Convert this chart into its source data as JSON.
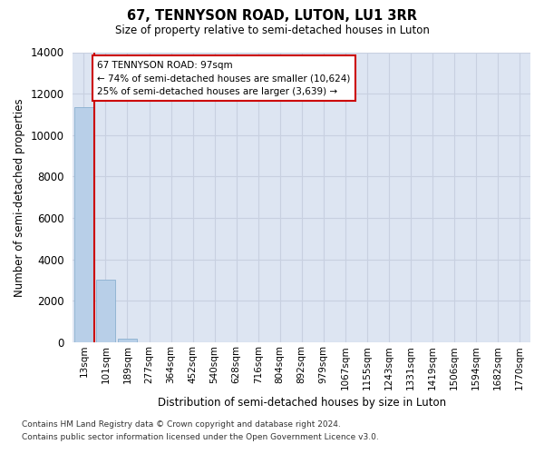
{
  "title": "67, TENNYSON ROAD, LUTON, LU1 3RR",
  "subtitle": "Size of property relative to semi-detached houses in Luton",
  "xlabel": "Distribution of semi-detached houses by size in Luton",
  "ylabel": "Number of semi-detached properties",
  "categories": [
    "13sqm",
    "101sqm",
    "189sqm",
    "277sqm",
    "364sqm",
    "452sqm",
    "540sqm",
    "628sqm",
    "716sqm",
    "804sqm",
    "892sqm",
    "979sqm",
    "1067sqm",
    "1155sqm",
    "1243sqm",
    "1331sqm",
    "1419sqm",
    "1506sqm",
    "1594sqm",
    "1682sqm",
    "1770sqm"
  ],
  "bar_values": [
    11350,
    3050,
    200,
    0,
    0,
    0,
    0,
    0,
    0,
    0,
    0,
    0,
    0,
    0,
    0,
    0,
    0,
    0,
    0,
    0,
    0
  ],
  "bar_color": "#b8cfe8",
  "bar_edge_color": "#8ab0d0",
  "vline_color": "#cc0000",
  "vline_x": 0.5,
  "annotation_line1": "67 TENNYSON ROAD: 97sqm",
  "annotation_line2": "← 74% of semi-detached houses are smaller (10,624)",
  "annotation_line3": "25% of semi-detached houses are larger (3,639) →",
  "annotation_box_edgecolor": "#cc0000",
  "ylim": [
    0,
    14000
  ],
  "yticks": [
    0,
    2000,
    4000,
    6000,
    8000,
    10000,
    12000,
    14000
  ],
  "background_color": "#dde5f2",
  "grid_color": "#c8d0e0",
  "footer1": "Contains HM Land Registry data © Crown copyright and database right 2024.",
  "footer2": "Contains public sector information licensed under the Open Government Licence v3.0."
}
